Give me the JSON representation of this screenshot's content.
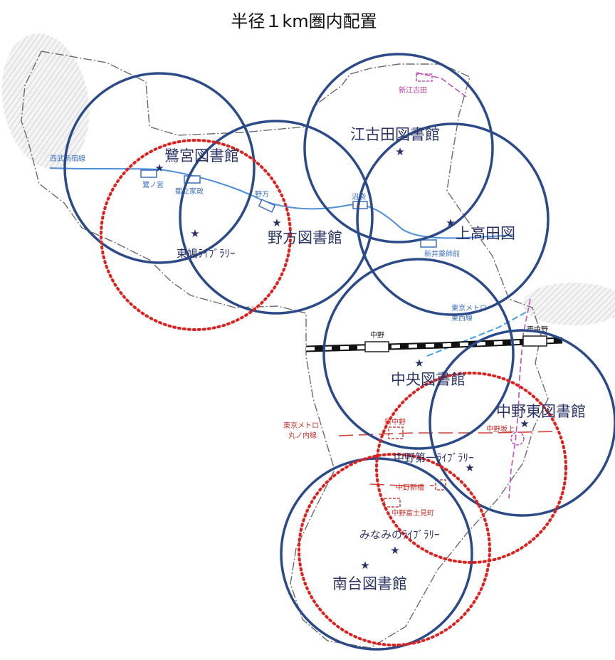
{
  "title": "半径１km圏内配置",
  "colors": {
    "circle_library": "#2b4a8a",
    "circle_branch": "#e0201d",
    "boundary": "#666666",
    "seibu_line": "#4f8fd8",
    "jr_line": "#111111",
    "metro_marunouchi": "#d2423a",
    "oedo_line": "#c24fbf",
    "tozai_line": "#3fa0e6",
    "star": "#27306a"
  },
  "libraries": [
    {
      "id": "saginomiya",
      "label": "鷺宮図書館",
      "kind": "library"
    },
    {
      "id": "nogata",
      "label": "野方図書館",
      "kind": "library"
    },
    {
      "id": "egota",
      "label": "江古田図書館",
      "kind": "library"
    },
    {
      "id": "kamitakada",
      "label": "上高田図",
      "kind": "library"
    },
    {
      "id": "chuo",
      "label": "中央図書館",
      "kind": "library"
    },
    {
      "id": "higashi",
      "label": "中野東図書館",
      "kind": "library"
    },
    {
      "id": "minamidai",
      "label": "南台図書館",
      "kind": "library"
    },
    {
      "id": "tojima",
      "label": "東鳩ﾗｲﾌﾞﾗﾘｰ",
      "kind": "branch"
    },
    {
      "id": "daiichi",
      "label": "中野第一ﾗｲﾌﾞﾗﾘｰ",
      "kind": "branch"
    },
    {
      "id": "minami",
      "label": "みなみのﾗｲﾌﾞﾗﾘｰ",
      "kind": "branch"
    }
  ],
  "stations": {
    "saginomiya": "鷺ノ宮",
    "toritsukasei": "都立家政",
    "nogata": "野方",
    "numabukuro": "沼袋",
    "araisakushiemae": "新井薬師前",
    "shinegota": "新江古田",
    "nakano": "中野",
    "higashinakano": "東中野",
    "shinnakano": "新中野",
    "nakanosakaue": "中野坂上",
    "nakanoshinbashi": "中野新橋",
    "nakanofujimicho": "中野富士見町"
  },
  "lines": {
    "seibu_shinjuku": "西武新宿線",
    "metro_tozai": "東京メトロ東西線",
    "metro_marunouchi": "東京メトロ丸ノ内線"
  }
}
